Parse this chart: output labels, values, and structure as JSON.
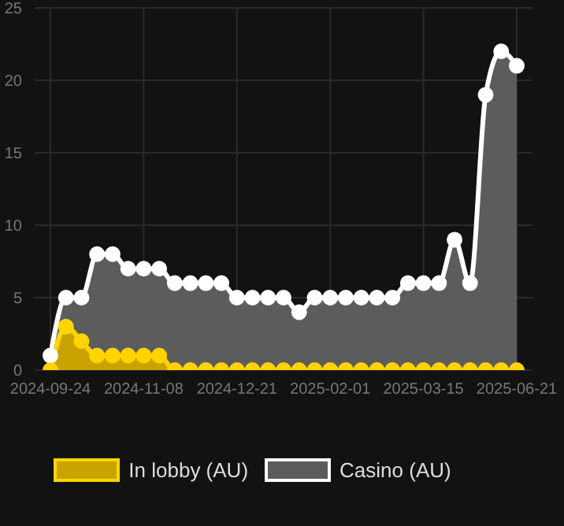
{
  "chart_data": {
    "type": "area",
    "categories": [
      "2024-09-24",
      null,
      null,
      null,
      null,
      null,
      "2024-11-08",
      null,
      null,
      null,
      null,
      null,
      "2024-12-21",
      null,
      null,
      null,
      null,
      null,
      "2025-02-01",
      null,
      null,
      null,
      null,
      null,
      "2025-03-15",
      null,
      null,
      null,
      null,
      null,
      "2025-06-21"
    ],
    "series": [
      {
        "name": "In lobby (AU)",
        "color": "#ffd400",
        "values": [
          0,
          3,
          2,
          1,
          1,
          1,
          1,
          1,
          0,
          0,
          0,
          0,
          0,
          0,
          0,
          0,
          0,
          0,
          0,
          0,
          0,
          0,
          0,
          0,
          0,
          0,
          0,
          0,
          0,
          0,
          0
        ]
      },
      {
        "name": "Casino (AU)",
        "color": "#ffffff",
        "values": [
          1,
          5,
          5,
          8,
          8,
          7,
          7,
          7,
          6,
          6,
          6,
          6,
          5,
          5,
          5,
          5,
          4,
          5,
          5,
          5,
          5,
          5,
          5,
          6,
          6,
          6,
          9,
          6,
          19,
          22,
          21
        ]
      }
    ],
    "ylim": [
      0,
      25
    ],
    "yticks": [
      0,
      5,
      10,
      15,
      20,
      25
    ],
    "grid": true,
    "legend": "bottom",
    "marker": "circle"
  }
}
